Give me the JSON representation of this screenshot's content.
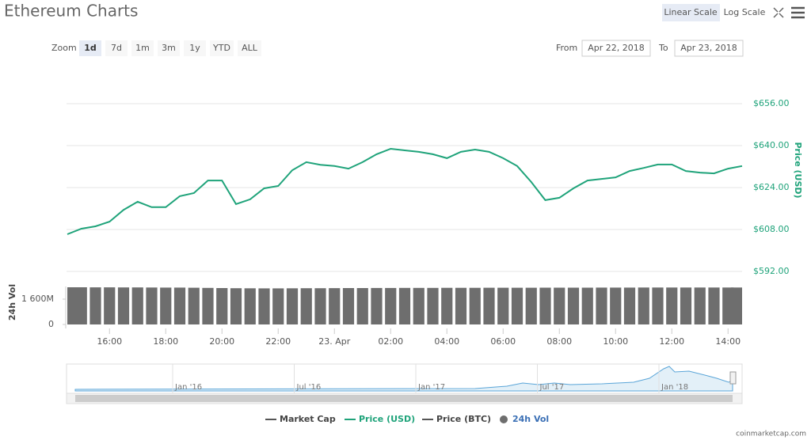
{
  "ui": {
    "title": "Ethereum Charts",
    "scale_buttons": [
      "Linear Scale",
      "Log Scale"
    ],
    "zoom_label": "Zoom",
    "zoom_buttons": [
      "1d",
      "7d",
      "1m",
      "3m",
      "1y",
      "YTD",
      "ALL"
    ],
    "from_label": "From",
    "from_date": "Apr 22, 2018",
    "to_label": "To",
    "to_date": "Apr 23, 2018",
    "legend_hidden": [
      "Market Cap",
      "Price (BTC)"
    ],
    "navigator_labels": [
      "Jan '16",
      "Jul '16",
      "Jan '17",
      "Jul '17",
      "Jan '18"
    ],
    "credit": "coinmarketcap.com"
  },
  "chart_data": [
    {
      "type": "line",
      "y_label": "Price (USD)",
      "x": [
        14.5,
        15,
        15.5,
        16,
        16.5,
        17,
        17.5,
        18,
        18.5,
        19,
        19.5,
        20,
        20.5,
        21,
        21.5,
        22,
        22.5,
        23,
        23.5,
        24,
        24.5,
        25,
        25.5,
        26,
        26.5,
        27,
        27.5,
        28,
        28.5,
        29,
        29.5,
        30,
        30.5,
        31,
        31.5,
        32,
        32.5,
        33,
        33.5,
        34,
        34.5,
        35,
        35.5,
        36,
        36.5,
        37,
        37.5,
        38,
        38.5
      ],
      "series": [
        {
          "name": "Price (USD)",
          "color": "#1fa37a",
          "values": [
            606.2,
            608.3,
            609.2,
            611.0,
            615.5,
            618.6,
            616.5,
            616.5,
            620.7,
            621.9,
            626.7,
            626.7,
            617.7,
            619.5,
            623.7,
            624.6,
            630.6,
            633.7,
            632.7,
            632.2,
            631.2,
            633.7,
            636.7,
            638.8,
            638.2,
            637.6,
            636.7,
            635.2,
            637.6,
            638.5,
            637.6,
            635.2,
            632.2,
            626.1,
            619.2,
            620.1,
            623.7,
            626.7,
            627.3,
            627.9,
            630.3,
            631.5,
            632.8,
            632.8,
            630.3,
            629.7,
            629.4,
            631.2,
            632.2
          ]
        }
      ],
      "xlim": [
        14.5,
        38.5
      ],
      "ylim": [
        592,
        656
      ],
      "yticks": [
        {
          "value": 592,
          "label": "$592.00"
        },
        {
          "value": 608,
          "label": "$608.00"
        },
        {
          "value": 624,
          "label": "$624.00"
        },
        {
          "value": 640,
          "label": "$640.00"
        },
        {
          "value": 656,
          "label": "$656.00"
        }
      ],
      "grid": true
    },
    {
      "type": "bar",
      "y_label": "24h Vol",
      "x": [
        14.5,
        15,
        15.5,
        16,
        16.5,
        17,
        17.5,
        18,
        18.5,
        19,
        19.5,
        20,
        20.5,
        21,
        21.5,
        22,
        22.5,
        23,
        23.5,
        24,
        24.5,
        25,
        25.5,
        26,
        26.5,
        27,
        27.5,
        28,
        28.5,
        29,
        29.5,
        30,
        30.5,
        31,
        31.5,
        32,
        32.5,
        33,
        33.5,
        34,
        34.5,
        35,
        35.5,
        36,
        36.5,
        37,
        37.5,
        38,
        38.5
      ],
      "series": [
        {
          "name": "24h Vol",
          "color": "#6e6e6e",
          "values": [
            2350,
            2350,
            2345,
            2345,
            2340,
            2340,
            2335,
            2330,
            2330,
            2320,
            2310,
            2300,
            2290,
            2285,
            2280,
            2280,
            2285,
            2290,
            2290,
            2295,
            2300,
            2300,
            2305,
            2305,
            2310,
            2310,
            2310,
            2315,
            2315,
            2315,
            2320,
            2320,
            2320,
            2320,
            2325,
            2325,
            2325,
            2325,
            2330,
            2330,
            2330,
            2335,
            2335,
            2335,
            2335,
            2335,
            2335,
            2335,
            2335
          ]
        }
      ],
      "xlim": [
        14.5,
        38.5
      ],
      "ylim": [
        0,
        2400
      ],
      "yticks": [
        0,
        {
          "value": 1600,
          "label": "1 600M"
        }
      ],
      "xticks": [
        {
          "value": 16,
          "label": "16:00"
        },
        {
          "value": 18,
          "label": "18:00"
        },
        {
          "value": 20,
          "label": "20:00"
        },
        {
          "value": 22,
          "label": "22:00"
        },
        {
          "value": 24,
          "label": "23. Apr"
        },
        {
          "value": 26,
          "label": "02:00"
        },
        {
          "value": 28,
          "label": "04:00"
        },
        {
          "value": 30,
          "label": "06:00"
        },
        {
          "value": 32,
          "label": "08:00"
        },
        {
          "value": 34,
          "label": "10:00"
        },
        {
          "value": 36,
          "label": "12:00"
        },
        {
          "value": 38,
          "label": "14:00"
        }
      ]
    }
  ]
}
